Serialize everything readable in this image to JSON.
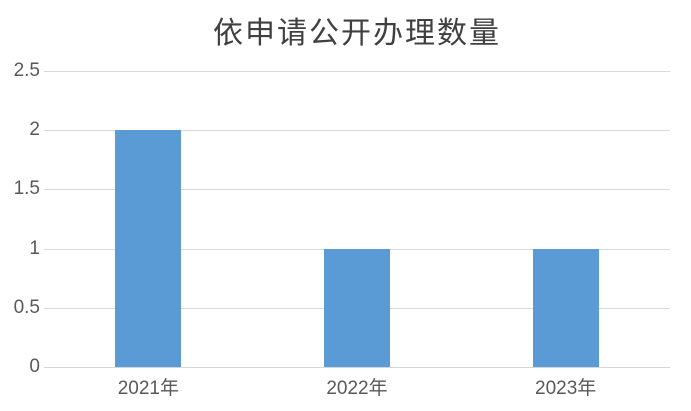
{
  "chart_data": {
    "type": "bar",
    "title": "依申请公开办理数量",
    "categories": [
      "2021年",
      "2022年",
      "2023年"
    ],
    "values": [
      2,
      1,
      1
    ],
    "xlabel": "",
    "ylabel": "",
    "ylim": [
      0,
      2.5
    ],
    "yticks": [
      0,
      0.5,
      1,
      1.5,
      2,
      2.5
    ],
    "ytick_labels": [
      "0",
      "0.5",
      "1",
      "1.5",
      "2",
      "2.5"
    ],
    "grid": true,
    "legend": "none",
    "colors": {
      "bar": "#5B9BD5",
      "gridline": "#D9D9D9",
      "axis_line": "#D6D6D6",
      "title_text": "#404040",
      "tick_text": "#595959",
      "background": "#FFFFFF"
    }
  }
}
